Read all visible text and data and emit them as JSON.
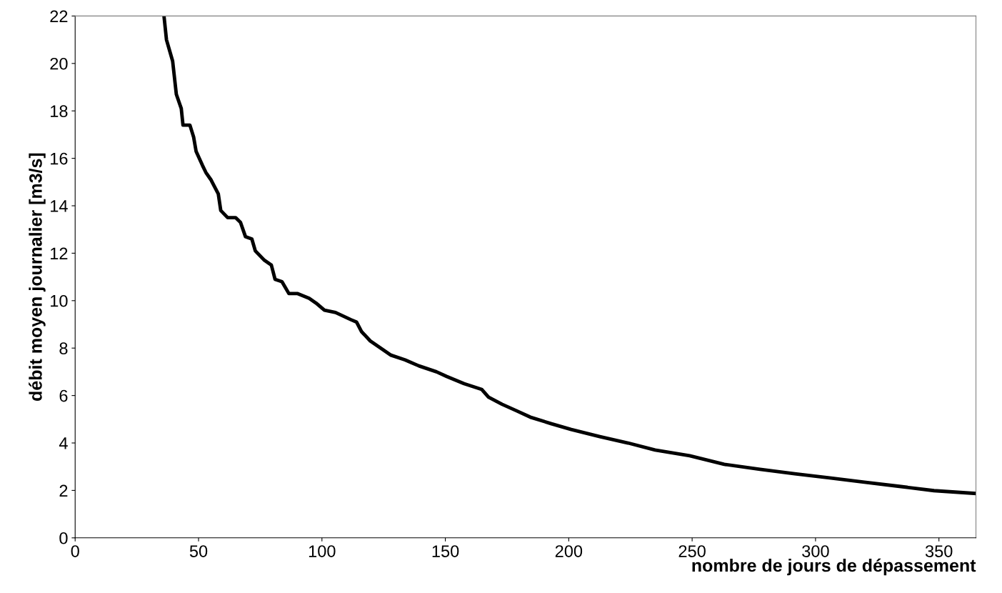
{
  "chart_data": {
    "type": "line",
    "xlabel": "nombre de jours de dépassement",
    "ylabel": "débit moyen journalier [m3/s]",
    "xlim": [
      0,
      365
    ],
    "ylim": [
      0,
      22
    ],
    "xticks": [
      0,
      50,
      100,
      150,
      200,
      250,
      300,
      350
    ],
    "yticks": [
      0,
      2,
      4,
      6,
      8,
      10,
      12,
      14,
      16,
      18,
      20,
      22
    ],
    "grid": false,
    "legend": false,
    "marker": "none",
    "line_style": "solid",
    "series": [
      {
        "color": "#000000",
        "x": [
          36,
          37,
          39.5,
          41,
          43,
          43.7,
          46.5,
          48,
          49,
          51.6,
          53,
          55,
          58,
          59,
          61.8,
          65,
          67,
          69,
          71.6,
          73,
          76.7,
          79.5,
          81,
          83.8,
          86.6,
          90,
          94.8,
          97.6,
          101,
          105.5,
          111.7,
          114,
          116,
          119.6,
          123.8,
          128,
          133.7,
          139.3,
          146.4,
          150.6,
          157.6,
          164.7,
          167.5,
          173,
          178.8,
          184.4,
          193,
          201,
          212.6,
          224,
          235,
          249,
          263,
          277.5,
          291.6,
          305.7,
          319.8,
          334,
          348,
          365
        ],
        "values": [
          22,
          21,
          20.1,
          18.7,
          18.1,
          17.4,
          17.4,
          16.9,
          16.3,
          15.7,
          15.4,
          15.1,
          14.5,
          13.8,
          13.5,
          13.5,
          13.3,
          12.7,
          12.6,
          12.1,
          11.7,
          11.5,
          10.9,
          10.8,
          10.3,
          10.3,
          10.1,
          9.9,
          9.6,
          9.5,
          9.2,
          9.1,
          8.7,
          8.3,
          8.0,
          7.7,
          7.5,
          7.25,
          7.0,
          6.8,
          6.5,
          6.26,
          5.93,
          5.63,
          5.36,
          5.09,
          4.81,
          4.57,
          4.27,
          4.0,
          3.7,
          3.46,
          3.1,
          2.89,
          2.7,
          2.53,
          2.35,
          2.17,
          1.99,
          1.87
        ]
      }
    ]
  }
}
